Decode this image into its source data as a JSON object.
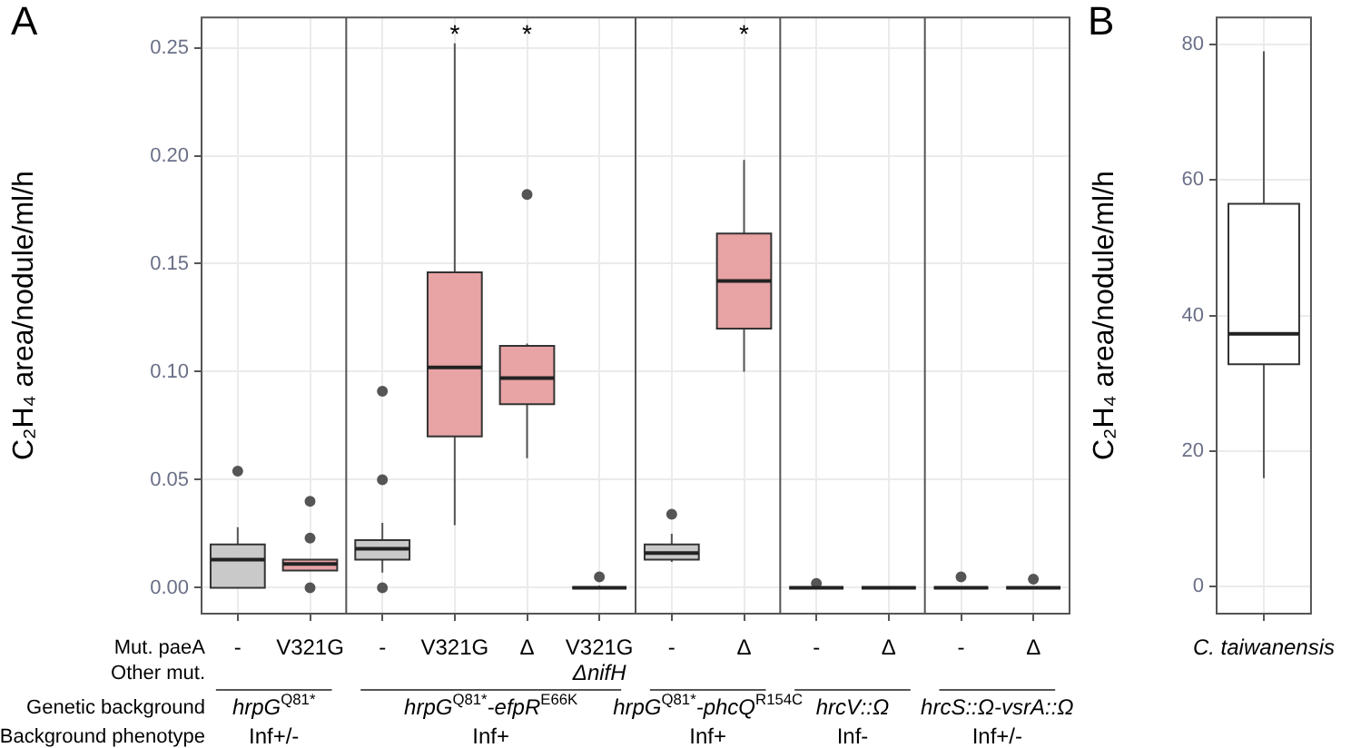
{
  "chart_data": [
    {
      "type": "box",
      "title": "A",
      "ylabel": "C₂H₄ area/nodule/ml/h",
      "xlabel": "Mut. paeA",
      "categories": [
        "-",
        "V321G",
        "-",
        "V321G",
        "Δ",
        "V321G",
        "-",
        "Δ",
        "-",
        "Δ",
        "-",
        "Δ"
      ],
      "colors": [
        "#c9c9c9",
        "#e8a3a5",
        "#c9c9c9",
        "#e8a3a5",
        "#e8a3a5",
        "#333333",
        "#c9c9c9",
        "#e8a3a5",
        "#333333",
        "#333333",
        "#333333",
        "#333333"
      ],
      "boxes": [
        {
          "low": 0,
          "q1": 0,
          "median": 0.013,
          "q3": 0.02,
          "high": 0.028,
          "outliers": [
            0.054
          ]
        },
        {
          "low": 0.008,
          "q1": 0.008,
          "median": 0.011,
          "q3": 0.013,
          "high": 0.013,
          "outliers": [
            0.04,
            0.023,
            0
          ]
        },
        {
          "low": 0.007,
          "q1": 0.013,
          "median": 0.018,
          "q3": 0.022,
          "high": 0.03,
          "outliers": [
            0.091,
            0.05,
            0
          ]
        },
        {
          "low": 0.029,
          "q1": 0.07,
          "median": 0.102,
          "q3": 0.146,
          "high": 0.252
        },
        {
          "low": 0.06,
          "q1": 0.085,
          "median": 0.097,
          "q3": 0.112,
          "high": 0.113,
          "outliers": [
            0.182
          ]
        },
        {
          "low": 0,
          "q1": 0,
          "median": 0,
          "q3": 0,
          "high": 0.001,
          "outliers": [
            0.005
          ]
        },
        {
          "low": 0.012,
          "q1": 0.013,
          "median": 0.016,
          "q3": 0.02,
          "high": 0.025,
          "outliers": [
            0.034
          ]
        },
        {
          "low": 0.1,
          "q1": 0.12,
          "median": 0.142,
          "q3": 0.164,
          "high": 0.198
        },
        {
          "low": 0,
          "q1": 0,
          "median": 0,
          "q3": 0,
          "high": 0,
          "outliers": [
            0.002
          ]
        },
        {
          "low": 0,
          "q1": 0,
          "median": 0,
          "q3": 0,
          "high": 0
        },
        {
          "low": 0,
          "q1": 0,
          "median": 0,
          "q3": 0,
          "high": 0,
          "outliers": [
            0.005
          ]
        },
        {
          "low": 0,
          "q1": 0,
          "median": 0,
          "q3": 0,
          "high": 0,
          "outliers": [
            0.004
          ]
        }
      ],
      "value_labels": [
        null,
        null,
        null,
        "*",
        "*",
        null,
        null,
        "*",
        null,
        null,
        null,
        null
      ],
      "ylim": [
        -0.012,
        0.264
      ],
      "yticks": [
        {
          "value": 0,
          "label": "0.00"
        },
        {
          "value": 0.05,
          "label": "0.05"
        },
        {
          "value": 0.1,
          "label": "0.10"
        },
        {
          "value": 0.15,
          "label": "0.15"
        },
        {
          "value": 0.2,
          "label": "0.20"
        },
        {
          "value": 0.25,
          "label": "0.25"
        }
      ],
      "grid": true,
      "annotations": [
        "Other mut.",
        "ΔnifH",
        "Genetic background",
        "hrpG$^{Q81*}$",
        "hrpG$^{Q81*}$-efpR$^{E66K}$",
        "hrpG$^{Q81*}$-phcQ$^{R154C}$",
        "hrcV::Ω",
        "hrcS::Ω-vsrA::Ω",
        "Background phenotype",
        "Inf+/-",
        "Inf+",
        "Inf+",
        "Inf-",
        "Inf+/-"
      ]
    },
    {
      "type": "box",
      "title": "B",
      "ylabel": "C₂H₄ area/nodule/ml/h",
      "categories": [
        "C. taiwanensis"
      ],
      "colors": [
        "#ffffff"
      ],
      "boxes": [
        {
          "low": 16,
          "q1": 32.8,
          "median": 37.3,
          "q3": 56.5,
          "high": 79
        }
      ],
      "ylim": [
        -4,
        84
      ],
      "yticks": [
        0,
        20,
        40,
        60,
        80
      ],
      "grid": true
    }
  ]
}
